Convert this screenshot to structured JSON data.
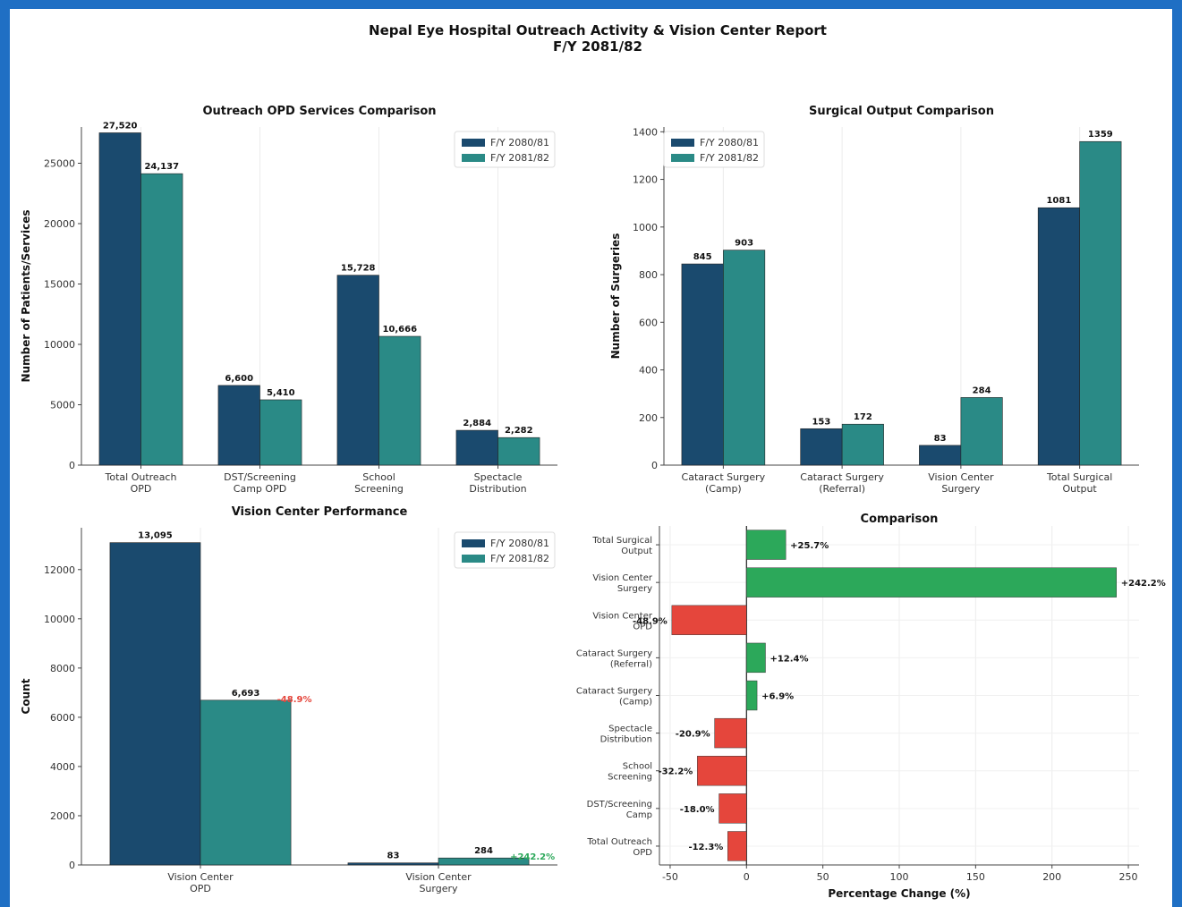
{
  "figure": {
    "title_line1": "Nepal Eye Hospital Outreach Activity & Vision Center Report",
    "title_line2": "F/Y 2081/82"
  },
  "colors": {
    "fy1": "#1a4a6e",
    "fy2": "#2a8a86",
    "pos": "#2ca85a",
    "neg": "#e5463c"
  },
  "chart_data": [
    {
      "type": "bar",
      "title": "Outreach OPD Services Comparison",
      "ylabel": "Number of Patients/Services",
      "xlabel": "",
      "ylim": [
        0,
        28000
      ],
      "yticks": [
        0,
        5000,
        10000,
        15000,
        20000,
        25000
      ],
      "categories": [
        [
          "Total Outreach",
          "OPD"
        ],
        [
          "DST/Screening",
          "Camp OPD"
        ],
        [
          "School",
          "Screening"
        ],
        [
          "Spectacle",
          "Distribution"
        ]
      ],
      "series": [
        {
          "name": "F/Y 2080/81",
          "values": [
            27520,
            6600,
            15728,
            2884
          ],
          "labels": [
            "27,520",
            "6,600",
            "15,728",
            "2,884"
          ]
        },
        {
          "name": "F/Y 2081/82",
          "values": [
            24137,
            5410,
            10666,
            2282
          ],
          "labels": [
            "24,137",
            "5,410",
            "10,666",
            "2,282"
          ]
        }
      ],
      "legend": "top-right",
      "grid": "vertical"
    },
    {
      "type": "bar",
      "title": "Surgical Output Comparison",
      "ylabel": "Number of Surgeries",
      "xlabel": "",
      "ylim": [
        0,
        1420
      ],
      "yticks": [
        0,
        200,
        400,
        600,
        800,
        1000,
        1200,
        1400
      ],
      "categories": [
        [
          "Cataract Surgery",
          "(Camp)"
        ],
        [
          "Cataract Surgery",
          "(Referral)"
        ],
        [
          "Vision Center",
          "Surgery"
        ],
        [
          "Total Surgical",
          "Output"
        ]
      ],
      "series": [
        {
          "name": "F/Y 2080/81",
          "values": [
            845,
            153,
            83,
            1081
          ],
          "labels": [
            "845",
            "153",
            "83",
            "1081"
          ]
        },
        {
          "name": "F/Y 2081/82",
          "values": [
            903,
            172,
            284,
            1359
          ],
          "labels": [
            "903",
            "172",
            "284",
            "1359"
          ]
        }
      ],
      "legend": "top-left",
      "grid": "vertical"
    },
    {
      "type": "bar",
      "title": "Vision Center Performance",
      "ylabel": "Count",
      "xlabel": "",
      "ylim": [
        0,
        13700
      ],
      "yticks": [
        0,
        2000,
        4000,
        6000,
        8000,
        10000,
        12000
      ],
      "categories": [
        [
          "Vision Center",
          "OPD"
        ],
        [
          "Vision Center",
          "Surgery"
        ]
      ],
      "series": [
        {
          "name": "F/Y 2080/81",
          "values": [
            13095,
            83
          ],
          "labels": [
            "13,095",
            "83"
          ]
        },
        {
          "name": "F/Y 2081/82",
          "values": [
            6693,
            284
          ],
          "labels": [
            "6,693",
            "284"
          ]
        }
      ],
      "change_labels": [
        "-48.9%",
        "+242.2%"
      ],
      "legend": "top-right",
      "grid": "vertical"
    },
    {
      "type": "bar",
      "orientation": "horizontal",
      "title": "Comparison",
      "xlabel": "Percentage Change (%)",
      "ylabel": "",
      "xlim": [
        -57,
        257
      ],
      "xticks": [
        -50,
        0,
        50,
        100,
        150,
        200,
        250
      ],
      "categories": [
        [
          "Total Surgical",
          "Output"
        ],
        [
          "Vision Center",
          "Surgery"
        ],
        [
          "Vision Center",
          "OPD"
        ],
        [
          "Cataract Surgery",
          "(Referral)"
        ],
        [
          "Cataract Surgery",
          "(Camp)"
        ],
        [
          "Spectacle",
          "Distribution"
        ],
        [
          "School",
          "Screening"
        ],
        [
          "DST/Screening",
          "Camp"
        ],
        [
          "Total Outreach",
          "OPD"
        ]
      ],
      "values": [
        25.7,
        242.2,
        -48.9,
        12.4,
        6.9,
        -20.9,
        -32.2,
        -18.0,
        -12.3
      ],
      "labels": [
        "+25.7%",
        "+242.2%",
        "-48.9%",
        "+12.4%",
        "+6.9%",
        "-20.9%",
        "-32.2%",
        "-18.0%",
        "-12.3%"
      ],
      "grid": "both"
    }
  ]
}
